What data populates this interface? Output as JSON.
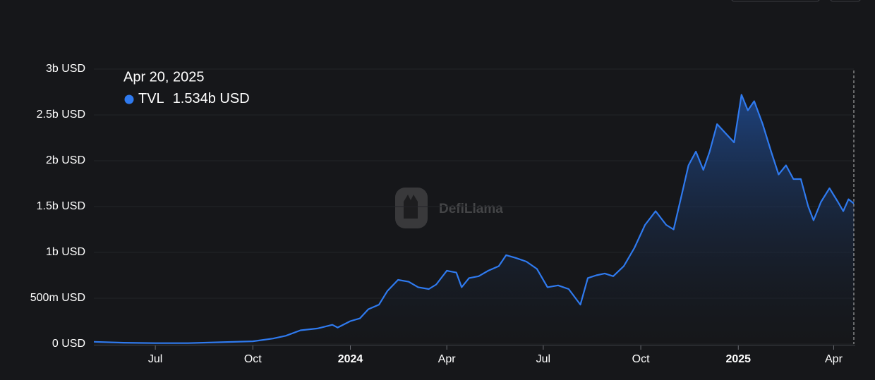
{
  "chart_data": {
    "type": "area",
    "watermark": "DefiLlama",
    "tooltip": {
      "title": "Apr 20, 2025",
      "value_label": "1.534b USD"
    },
    "x": [
      "2023-05-04",
      "2023-06-01",
      "2023-07-01",
      "2023-08-01",
      "2023-09-01",
      "2023-10-01",
      "2023-10-20",
      "2023-11-01",
      "2023-11-15",
      "2023-12-01",
      "2023-12-15",
      "2023-12-20",
      "2024-01-01",
      "2024-01-10",
      "2024-01-18",
      "2024-01-28",
      "2024-02-05",
      "2024-02-15",
      "2024-02-25",
      "2024-03-05",
      "2024-03-15",
      "2024-03-22",
      "2024-04-01",
      "2024-04-10",
      "2024-04-15",
      "2024-04-22",
      "2024-05-01",
      "2024-05-10",
      "2024-05-20",
      "2024-05-27",
      "2024-06-05",
      "2024-06-15",
      "2024-06-25",
      "2024-07-05",
      "2024-07-15",
      "2024-07-25",
      "2024-08-05",
      "2024-08-12",
      "2024-08-20",
      "2024-08-28",
      "2024-09-05",
      "2024-09-15",
      "2024-09-25",
      "2024-10-05",
      "2024-10-15",
      "2024-10-25",
      "2024-11-01",
      "2024-11-08",
      "2024-11-15",
      "2024-11-22",
      "2024-11-29",
      "2024-12-05",
      "2024-12-12",
      "2024-12-20",
      "2024-12-28",
      "2025-01-04",
      "2025-01-10",
      "2025-01-16",
      "2025-01-24",
      "2025-02-01",
      "2025-02-08",
      "2025-02-15",
      "2025-02-22",
      "2025-03-01",
      "2025-03-08",
      "2025-03-13",
      "2025-03-20",
      "2025-03-28",
      "2025-04-05",
      "2025-04-10",
      "2025-04-15",
      "2025-04-20"
    ],
    "series": [
      {
        "name": "TVL",
        "color": "#2f7aef",
        "values": [
          25000000,
          15000000,
          10000000,
          10000000,
          20000000,
          30000000,
          60000000,
          90000000,
          150000000,
          170000000,
          210000000,
          180000000,
          250000000,
          280000000,
          380000000,
          430000000,
          580000000,
          700000000,
          680000000,
          620000000,
          600000000,
          650000000,
          800000000,
          780000000,
          620000000,
          720000000,
          740000000,
          800000000,
          850000000,
          970000000,
          940000000,
          900000000,
          820000000,
          620000000,
          640000000,
          600000000,
          430000000,
          720000000,
          750000000,
          770000000,
          740000000,
          850000000,
          1050000000,
          1300000000,
          1450000000,
          1300000000,
          1250000000,
          1600000000,
          1950000000,
          2100000000,
          1900000000,
          2100000000,
          2400000000,
          2300000000,
          2200000000,
          2720000000,
          2550000000,
          2650000000,
          2400000000,
          2100000000,
          1850000000,
          1950000000,
          1800000000,
          1800000000,
          1500000000,
          1350000000,
          1550000000,
          1700000000,
          1550000000,
          1450000000,
          1580000000,
          1534000000
        ]
      }
    ],
    "xlim": [
      "2023-05-04",
      "2025-04-20"
    ],
    "xticks": [
      {
        "value": "2023-07-01",
        "label": "Jul"
      },
      {
        "value": "2023-10-01",
        "label": "Oct"
      },
      {
        "value": "2024-01-01",
        "label": "2024"
      },
      {
        "value": "2024-04-01",
        "label": "Apr"
      },
      {
        "value": "2024-07-01",
        "label": "Jul"
      },
      {
        "value": "2024-10-01",
        "label": "Oct"
      },
      {
        "value": "2025-01-01",
        "label": "2025"
      },
      {
        "value": "2025-04-01",
        "label": "Apr"
      }
    ],
    "ylim": [
      0,
      3000000000
    ],
    "yticks": [
      {
        "value": 0,
        "label": "0 USD"
      },
      {
        "value": 500000000,
        "label": "500m USD"
      },
      {
        "value": 1000000000,
        "label": "1b USD"
      },
      {
        "value": 1500000000,
        "label": "1.5b USD"
      },
      {
        "value": 2000000000,
        "label": "2b USD"
      },
      {
        "value": 2500000000,
        "label": "2.5b USD"
      },
      {
        "value": 3000000000,
        "label": "3b USD"
      }
    ],
    "grid": true
  }
}
